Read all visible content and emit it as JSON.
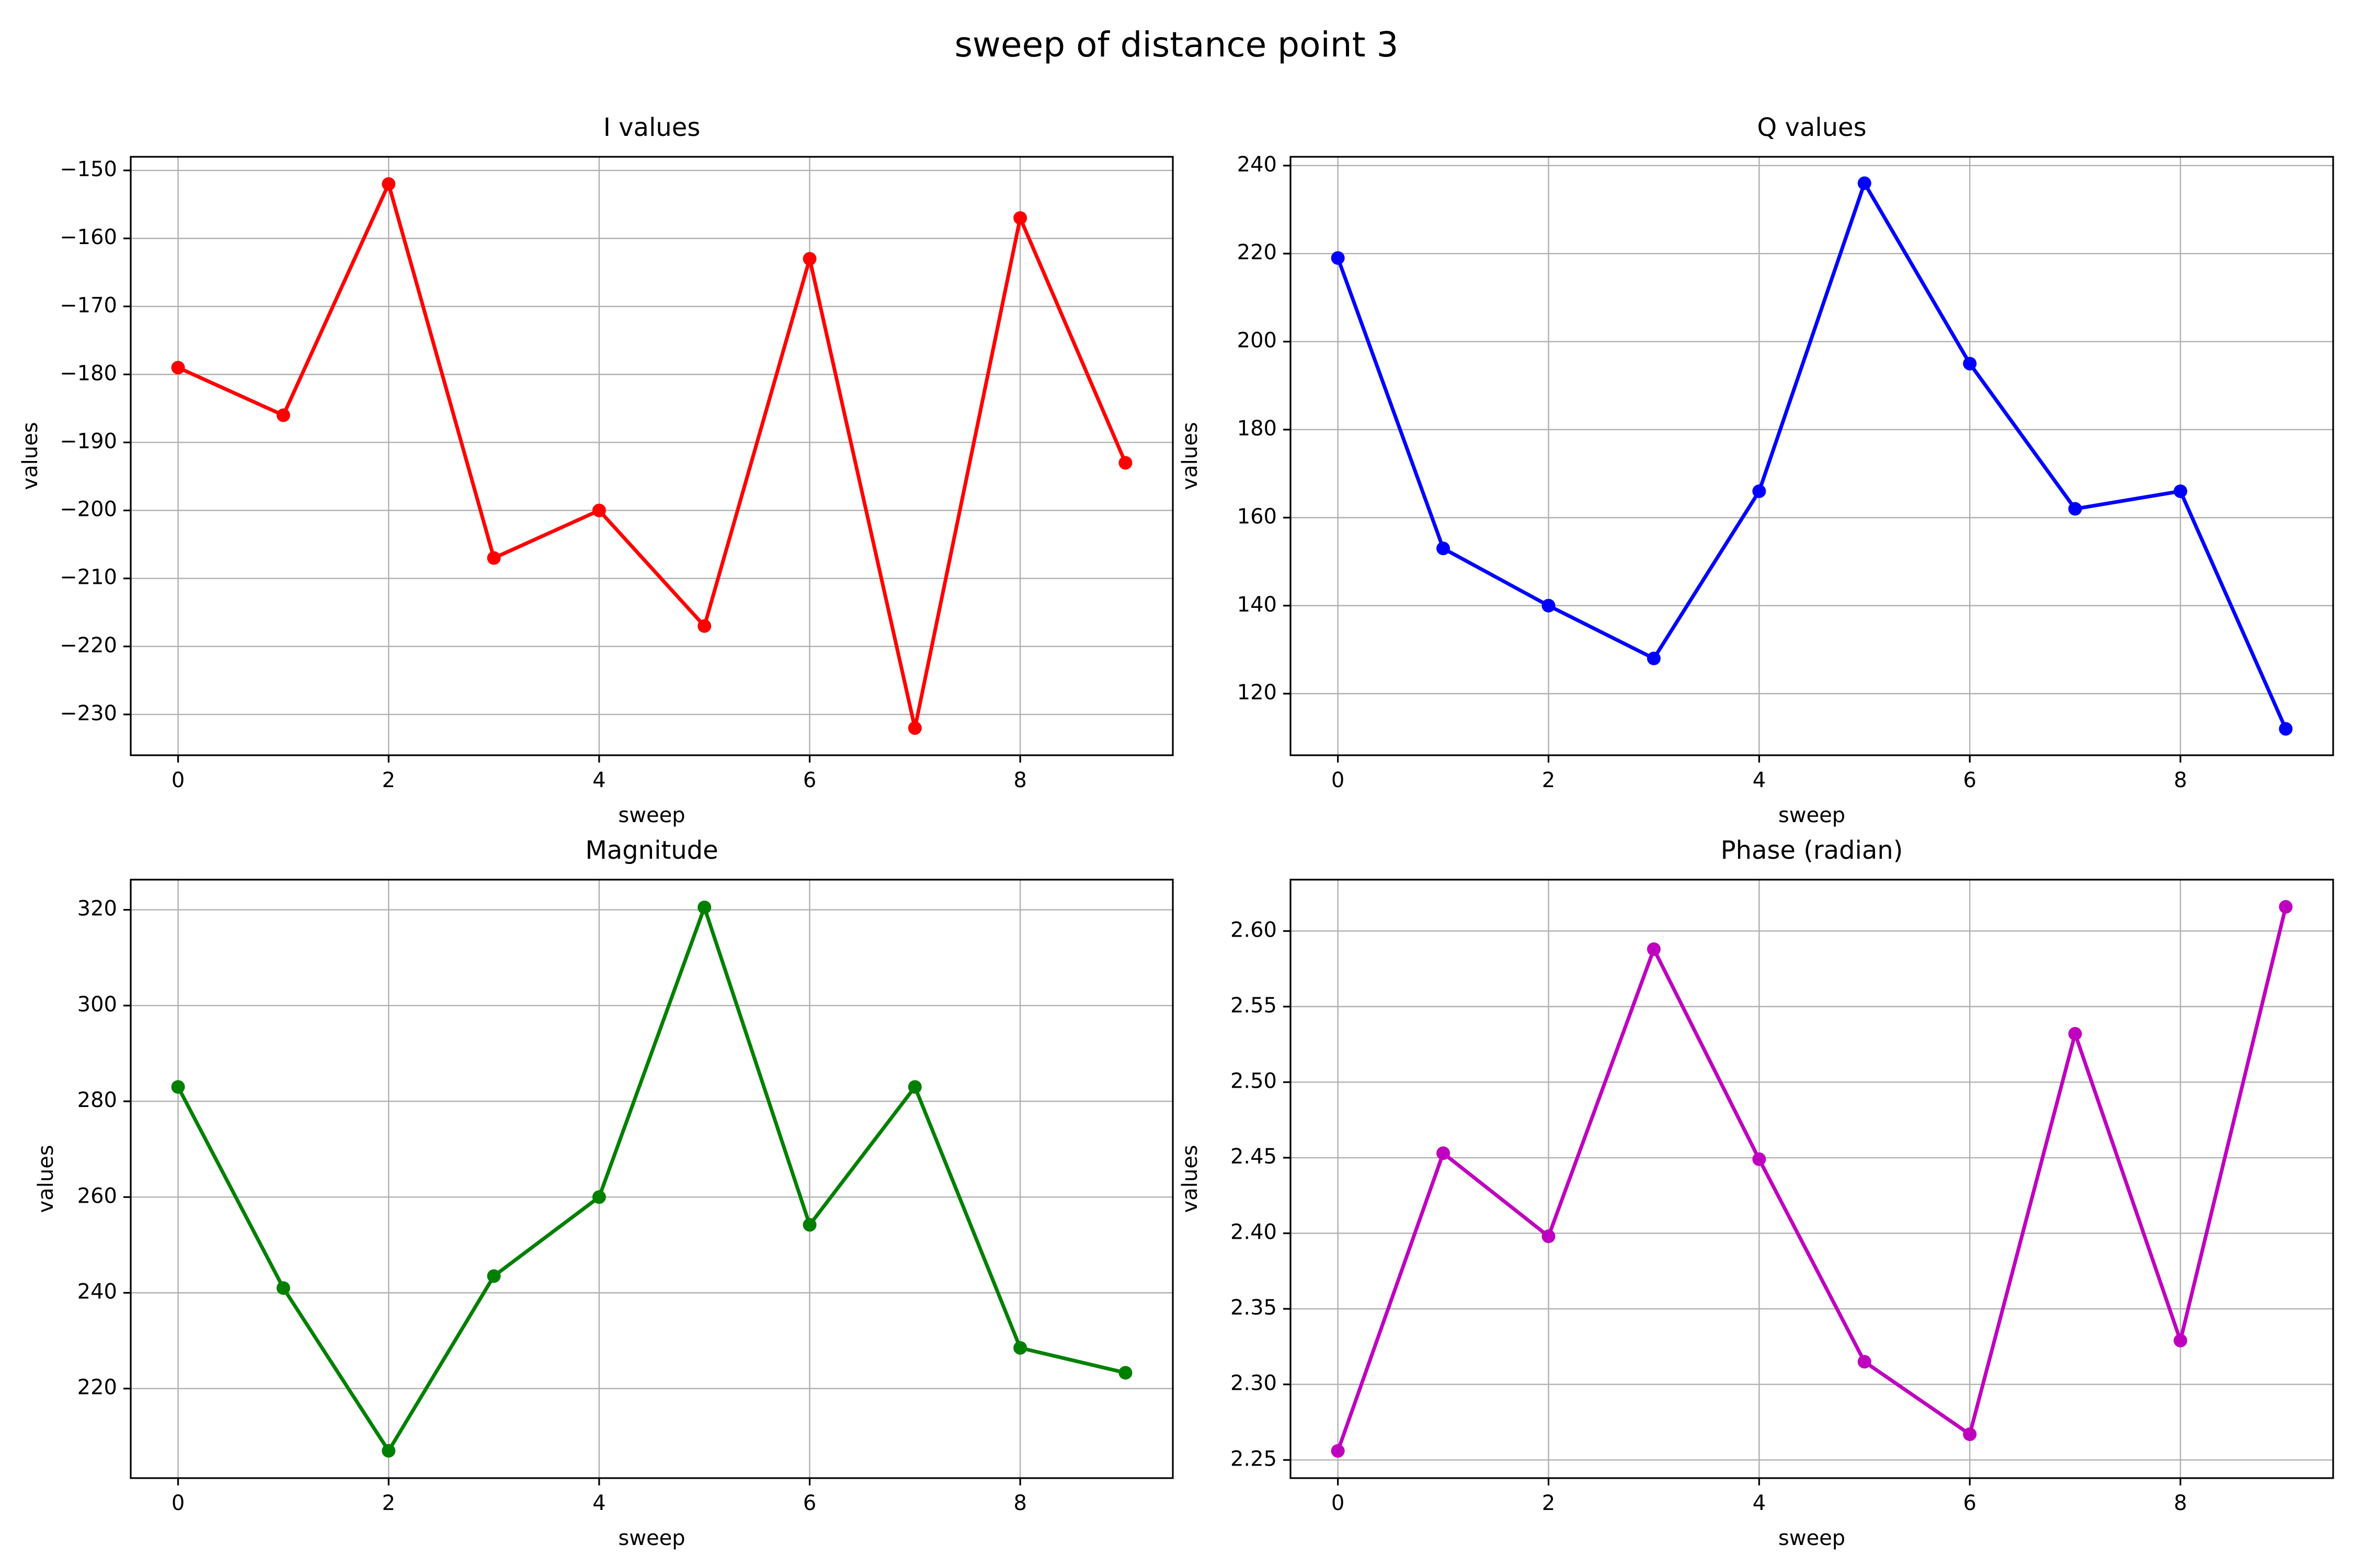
{
  "figure": {
    "suptitle": "sweep of distance point  3"
  },
  "chart_data": [
    {
      "type": "line",
      "title": "I values",
      "xlabel": "sweep",
      "ylabel": "values",
      "x": [
        0,
        1,
        2,
        3,
        4,
        5,
        6,
        7,
        8,
        9
      ],
      "series": [
        {
          "values": [
            -179,
            -186,
            -152,
            -207,
            -200,
            -217,
            -163,
            -232,
            -157,
            -193
          ],
          "color": "#ff0000",
          "marker": "circle"
        }
      ],
      "xlim": [
        -0.45,
        9.45
      ],
      "ylim": [
        -236,
        -148
      ],
      "xticks": [
        0,
        2,
        4,
        6,
        8
      ],
      "xtick_labels": [
        "0",
        "2",
        "4",
        "6",
        "8"
      ],
      "yticks": [
        -230,
        -220,
        -210,
        -200,
        -190,
        -180,
        -170,
        -160,
        -150
      ],
      "ytick_labels": [
        "−230",
        "−220",
        "−210",
        "−200",
        "−190",
        "−180",
        "−170",
        "−160",
        "−150"
      ],
      "grid": true
    },
    {
      "type": "line",
      "title": "Q values",
      "xlabel": "sweep",
      "ylabel": "values",
      "x": [
        0,
        1,
        2,
        3,
        4,
        5,
        6,
        7,
        8,
        9
      ],
      "series": [
        {
          "values": [
            219,
            153,
            140,
            128,
            166,
            236,
            195,
            162,
            166,
            112
          ],
          "color": "#0000ff",
          "marker": "circle"
        }
      ],
      "xlim": [
        -0.45,
        9.45
      ],
      "ylim": [
        106,
        242
      ],
      "xticks": [
        0,
        2,
        4,
        6,
        8
      ],
      "xtick_labels": [
        "0",
        "2",
        "4",
        "6",
        "8"
      ],
      "yticks": [
        120,
        140,
        160,
        180,
        200,
        220,
        240
      ],
      "ytick_labels": [
        "120",
        "140",
        "160",
        "180",
        "200",
        "220",
        "240"
      ],
      "grid": true
    },
    {
      "type": "line",
      "title": "Magnitude",
      "xlabel": "sweep",
      "ylabel": "values",
      "x": [
        0,
        1,
        2,
        3,
        4,
        5,
        6,
        7,
        8,
        9
      ],
      "series": [
        {
          "values": [
            283,
            241,
            207,
            243.5,
            260,
            320.5,
            254.2,
            283,
            228.5,
            223.3
          ],
          "color": "#008000",
          "marker": "circle"
        }
      ],
      "xlim": [
        -0.45,
        9.45
      ],
      "ylim": [
        201.3,
        326.3
      ],
      "xticks": [
        0,
        2,
        4,
        6,
        8
      ],
      "xtick_labels": [
        "0",
        "2",
        "4",
        "6",
        "8"
      ],
      "yticks": [
        220,
        240,
        260,
        280,
        300,
        320
      ],
      "ytick_labels": [
        "220",
        "240",
        "260",
        "280",
        "300",
        "320"
      ],
      "grid": true
    },
    {
      "type": "line",
      "title": "Phase (radian)",
      "xlabel": "sweep",
      "ylabel": "values",
      "x": [
        0,
        1,
        2,
        3,
        4,
        5,
        6,
        7,
        8,
        9
      ],
      "series": [
        {
          "values": [
            2.256,
            2.453,
            2.398,
            2.588,
            2.449,
            2.315,
            2.267,
            2.532,
            2.329,
            2.616
          ],
          "color": "#bf00bf",
          "marker": "circle"
        }
      ],
      "xlim": [
        -0.45,
        9.45
      ],
      "ylim": [
        2.238,
        2.634
      ],
      "xticks": [
        0,
        2,
        4,
        6,
        8
      ],
      "xtick_labels": [
        "0",
        "2",
        "4",
        "6",
        "8"
      ],
      "yticks": [
        2.25,
        2.3,
        2.35,
        2.4,
        2.45,
        2.5,
        2.55,
        2.6
      ],
      "ytick_labels": [
        "2.25",
        "2.30",
        "2.35",
        "2.40",
        "2.45",
        "2.50",
        "2.55",
        "2.60"
      ],
      "grid": true
    }
  ]
}
